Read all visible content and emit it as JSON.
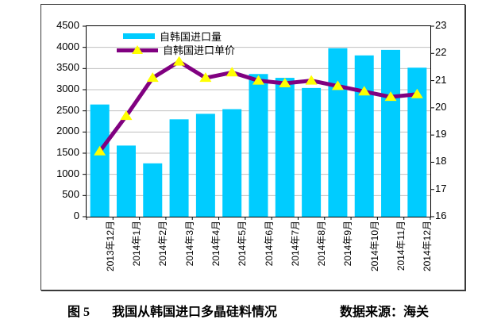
{
  "figure": {
    "caption_label": "图 5",
    "caption_title": "我国从韩国进口多晶硅料情况",
    "caption_source": "数据来源：海关"
  },
  "chart_data": {
    "type": "bar",
    "subtype": "bar+line dual-axis combo",
    "categories": [
      "2013年12月",
      "2014年1月",
      "2014年2月",
      "2014年3月",
      "2014年4月",
      "2014年5月",
      "2014年6月",
      "2014年7月",
      "2014年8月",
      "2014年9月",
      "2014年10月",
      "2014年11月",
      "2014年12月"
    ],
    "series": [
      {
        "name": "自韩国进口量",
        "type": "bar",
        "axis": "left",
        "color": "#00CCFF",
        "values": [
          2650,
          1680,
          1260,
          2300,
          2430,
          2540,
          3370,
          3280,
          3040,
          3980,
          3810,
          3940,
          3520
        ]
      },
      {
        "name": "自韩国进口单价",
        "type": "line",
        "axis": "right",
        "color": "#800080",
        "marker": "triangle",
        "marker_color": "#FFFF00",
        "values": [
          18.4,
          19.7,
          21.1,
          21.7,
          21.1,
          21.3,
          21.0,
          20.9,
          21.0,
          20.8,
          20.6,
          20.4,
          20.5
        ]
      }
    ],
    "left_axis": {
      "min": 0,
      "max": 4500,
      "step": 500,
      "ticks": [
        "0",
        "500",
        "1000",
        "1500",
        "2000",
        "2500",
        "3000",
        "3500",
        "4000",
        "4500"
      ]
    },
    "right_axis": {
      "min": 16,
      "max": 23,
      "step": 1,
      "ticks": [
        "16",
        "17",
        "18",
        "19",
        "20",
        "21",
        "22",
        "23"
      ]
    },
    "grid": true,
    "gridline_color": "#C0C0C0",
    "axis_color": "#000000",
    "legend_position": "top-left-inside",
    "title": "",
    "xlabel": "",
    "ylabel_left": "",
    "ylabel_right": ""
  }
}
